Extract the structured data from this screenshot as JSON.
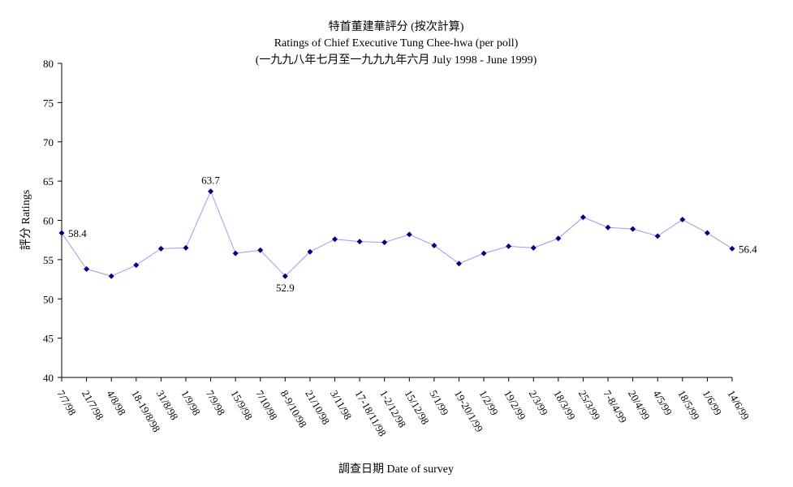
{
  "chart_data": {
    "type": "line",
    "title_lines": [
      "特首董建華評分 (按次計算)",
      "Ratings of Chief Executive Tung Chee-hwa (per poll)",
      "(一九九八年七月至一九九九年六月 July 1998 - June 1999)"
    ],
    "xlabel": "調查日期 Date of survey",
    "ylabel": "評分 Ratings",
    "ylim": [
      40,
      80
    ],
    "yticks": [
      40,
      45,
      50,
      55,
      60,
      65,
      70,
      75,
      80
    ],
    "categories": [
      "7/7/98",
      "21/7/98",
      "4/8/98",
      "18-19/8/98",
      "31/8/98",
      "1/9/98",
      "7/9/98",
      "15/9/98",
      "7/10/98",
      "8-9/10/98",
      "21/10/98",
      "3/11/98",
      "17-18/11/98",
      "1-2/12/98",
      "15/12/98",
      "5/1/99",
      "19-20/1/99",
      "1/2/99",
      "19/2/99",
      "2/3/99",
      "18/3/99",
      "25/3/99",
      "7-8/4/99",
      "20/4/99",
      "4/5/99",
      "18/5/99",
      "1/6/99",
      "14/6/99"
    ],
    "series": [
      {
        "values": [
          58.4,
          53.8,
          52.9,
          54.3,
          56.4,
          56.5,
          63.7,
          55.8,
          56.2,
          52.9,
          56.0,
          57.6,
          57.3,
          57.2,
          58.2,
          56.8,
          54.5,
          55.8,
          56.7,
          56.5,
          57.7,
          60.4,
          59.1,
          58.9,
          58.0,
          60.1,
          58.4,
          56.4
        ],
        "color": "#9999ff",
        "marker_color": "#000080"
      }
    ],
    "data_labels": [
      {
        "index": 0,
        "text": "58.4",
        "position": "right"
      },
      {
        "index": 6,
        "text": "63.7",
        "position": "above"
      },
      {
        "index": 9,
        "text": "52.9",
        "position": "below"
      },
      {
        "index": 27,
        "text": "56.4",
        "position": "right"
      }
    ],
    "grid": false,
    "legend": "none"
  }
}
